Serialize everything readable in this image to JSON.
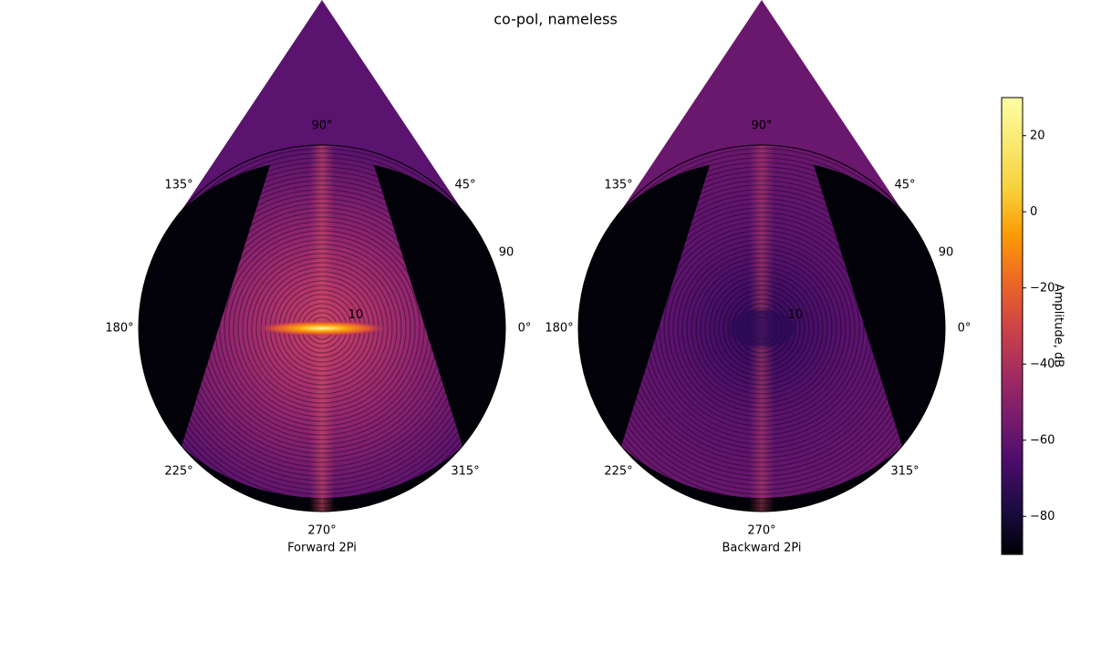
{
  "chart_data": {
    "type": "polar-heatmap",
    "title": "co-pol, nameless",
    "subplots": [
      {
        "xlabel": "Forward 2Pi",
        "thetaticks": [
          {
            "value": 0,
            "label": "0°"
          },
          {
            "value": 45,
            "label": "45°"
          },
          {
            "value": 90,
            "label": "90°"
          },
          {
            "value": 135,
            "label": "135°"
          },
          {
            "value": 180,
            "label": "180°"
          },
          {
            "value": 225,
            "label": "225°"
          },
          {
            "value": 270,
            "label": "270°"
          },
          {
            "value": 315,
            "label": "315°"
          }
        ],
        "rlim": [
          0,
          90
        ],
        "rticks": [
          10,
          90
        ]
      },
      {
        "xlabel": "Backward 2Pi",
        "thetaticks": [
          {
            "value": 0,
            "label": "0°"
          },
          {
            "value": 45,
            "label": "45°"
          },
          {
            "value": 90,
            "label": "90°"
          },
          {
            "value": 135,
            "label": "135°"
          },
          {
            "value": 180,
            "label": "180°"
          },
          {
            "value": 225,
            "label": "225°"
          },
          {
            "value": 270,
            "label": "270°"
          },
          {
            "value": 315,
            "label": "315°"
          }
        ],
        "rlim": [
          0,
          90
        ],
        "rticks": [
          10,
          90
        ]
      }
    ],
    "colorbar": {
      "label": "Amplitude, dB",
      "clim": [
        -90,
        30
      ],
      "colormap": "inferno",
      "ticks": [
        20,
        0,
        {
          "value": -20,
          "label": "−20"
        },
        {
          "value": -40,
          "label": "−40"
        },
        {
          "value": -60,
          "label": "−60"
        },
        {
          "value": -80,
          "label": "−80"
        }
      ]
    }
  }
}
